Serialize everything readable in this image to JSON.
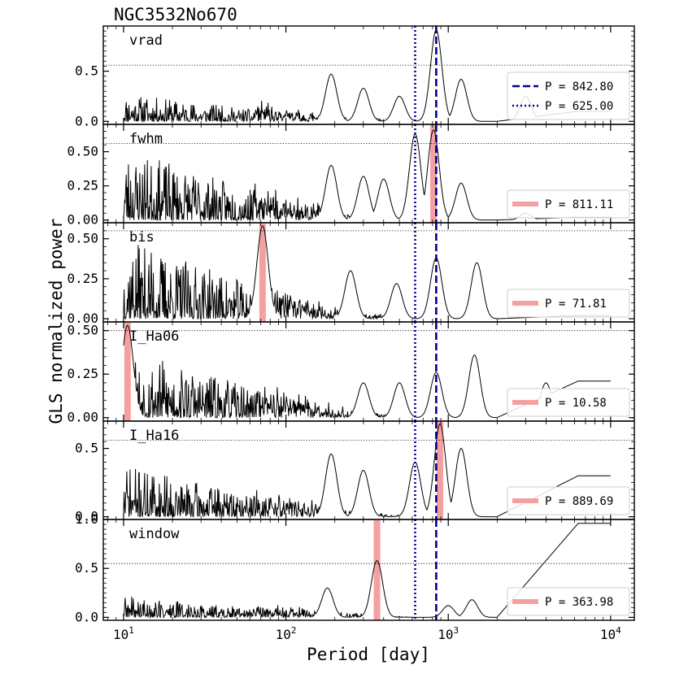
{
  "chart_data": {
    "type": "line",
    "title": "NGC3532No670",
    "xlabel": "Period [day]",
    "ylabel": "GLS normalized power",
    "xscale": "log",
    "xlim": [
      7.5,
      14000
    ],
    "x_tick_labels": [
      "10^1",
      "10^2",
      "10^3",
      "10^4"
    ],
    "reference_lines": [
      {
        "name": "P = 842.80",
        "period": 842.8,
        "style": "dashed",
        "color": "#00008b"
      },
      {
        "name": "P = 625.00",
        "period": 625.0,
        "style": "dotted",
        "color": "#00008b"
      }
    ],
    "highlight_color": "#f4a0a0",
    "colors": {
      "line": "#000000",
      "ref": "#00008b",
      "highlight": "#f4a0a0",
      "fap": "#000000"
    },
    "panels": [
      {
        "label": "vrad",
        "ylim": [
          -0.03,
          0.95
        ],
        "yticks": [
          0.0,
          0.5
        ],
        "ytick_labels": [
          "0.0",
          "0.5"
        ],
        "fap_level": 0.56,
        "peak_period": 842.8,
        "peak_power": 0.91,
        "highlight": null,
        "legend": [
          {
            "style": "dashed",
            "color": "#00008b",
            "text": "P = 842.80"
          },
          {
            "style": "dotted",
            "color": "#00008b",
            "text": "P = 625.00"
          }
        ],
        "features": [
          [
            190,
            0.47
          ],
          [
            300,
            0.33
          ],
          [
            500,
            0.25
          ],
          [
            842.8,
            0.91
          ],
          [
            1200,
            0.42
          ],
          [
            3000,
            0.25
          ]
        ],
        "noise_amp": 0.28,
        "tail": 0.1,
        "seed": 11
      },
      {
        "label": "fwhm",
        "ylim": [
          -0.02,
          0.7
        ],
        "yticks": [
          0.0,
          0.25,
          0.5
        ],
        "ytick_labels": [
          "0.00",
          "0.25",
          "0.50"
        ],
        "fap_level": 0.56,
        "peak_period": 811.11,
        "peak_power": 0.66,
        "highlight": 811.11,
        "legend": [
          {
            "style": "highlight",
            "color": "#f4a0a0",
            "text": "P = 811.11"
          }
        ],
        "features": [
          [
            190,
            0.4
          ],
          [
            300,
            0.32
          ],
          [
            400,
            0.3
          ],
          [
            625,
            0.63
          ],
          [
            811.11,
            0.66
          ],
          [
            1200,
            0.27
          ],
          [
            3000,
            0.05
          ]
        ],
        "noise_amp": 0.52,
        "tail": 0.02,
        "seed": 23
      },
      {
        "label": "bis",
        "ylim": [
          -0.02,
          0.6
        ],
        "yticks": [
          0.0,
          0.25,
          0.5
        ],
        "ytick_labels": [
          "0.00",
          "0.25",
          "0.50"
        ],
        "fap_level": 0.55,
        "peak_period": 71.81,
        "peak_power": 0.58,
        "highlight": 71.81,
        "legend": [
          {
            "style": "highlight",
            "color": "#f4a0a0",
            "text": "P = 71.81"
          }
        ],
        "features": [
          [
            71.81,
            0.58
          ],
          [
            250,
            0.3
          ],
          [
            480,
            0.22
          ],
          [
            842.8,
            0.38
          ],
          [
            1500,
            0.35
          ],
          [
            5000,
            0.02
          ]
        ],
        "noise_amp": 0.5,
        "tail": 0.02,
        "seed": 37
      },
      {
        "label": "I_Ha06",
        "ylim": [
          -0.02,
          0.55
        ],
        "yticks": [
          0.0,
          0.25,
          0.5
        ],
        "ytick_labels": [
          "0.00",
          "0.25",
          "0.50"
        ],
        "fap_level": 0.5,
        "peak_period": 10.58,
        "peak_power": 0.53,
        "highlight": 10.58,
        "legend": [
          {
            "style": "highlight",
            "color": "#f4a0a0",
            "text": "P = 10.58"
          }
        ],
        "features": [
          [
            10.58,
            0.53
          ],
          [
            300,
            0.2
          ],
          [
            500,
            0.2
          ],
          [
            842.8,
            0.26
          ],
          [
            1450,
            0.36
          ],
          [
            4000,
            0.2
          ]
        ],
        "noise_amp": 0.4,
        "tail": 0.21,
        "seed": 53
      },
      {
        "label": "I_Ha16",
        "ylim": [
          -0.02,
          0.7
        ],
        "yticks": [
          0.0,
          0.5
        ],
        "ytick_labels": [
          "0.0",
          "0.5"
        ],
        "fap_level": 0.56,
        "peak_period": 889.69,
        "peak_power": 0.68,
        "highlight": 889.69,
        "legend": [
          {
            "style": "highlight",
            "color": "#f4a0a0",
            "text": "P = 889.69"
          }
        ],
        "features": [
          [
            190,
            0.46
          ],
          [
            300,
            0.34
          ],
          [
            625,
            0.4
          ],
          [
            889.69,
            0.68
          ],
          [
            1200,
            0.5
          ],
          [
            3000,
            0.1
          ]
        ],
        "noise_amp": 0.38,
        "tail": 0.3,
        "seed": 71
      },
      {
        "label": "window",
        "ylim": [
          -0.03,
          1.0
        ],
        "yticks": [
          0.0,
          0.5,
          1.0
        ],
        "ytick_labels": [
          "0.0",
          "0.5",
          "1.0"
        ],
        "fap_level": 0.55,
        "peak_period": 363.98,
        "peak_power": 0.58,
        "highlight": 363.98,
        "legend": [
          {
            "style": "highlight",
            "color": "#f4a0a0",
            "text": "P = 363.98"
          }
        ],
        "features": [
          [
            180,
            0.3
          ],
          [
            363.98,
            0.58
          ],
          [
            1000,
            0.12
          ],
          [
            1400,
            0.18
          ]
        ],
        "noise_amp": 0.22,
        "tail": 0.96,
        "seed": 89
      }
    ]
  }
}
